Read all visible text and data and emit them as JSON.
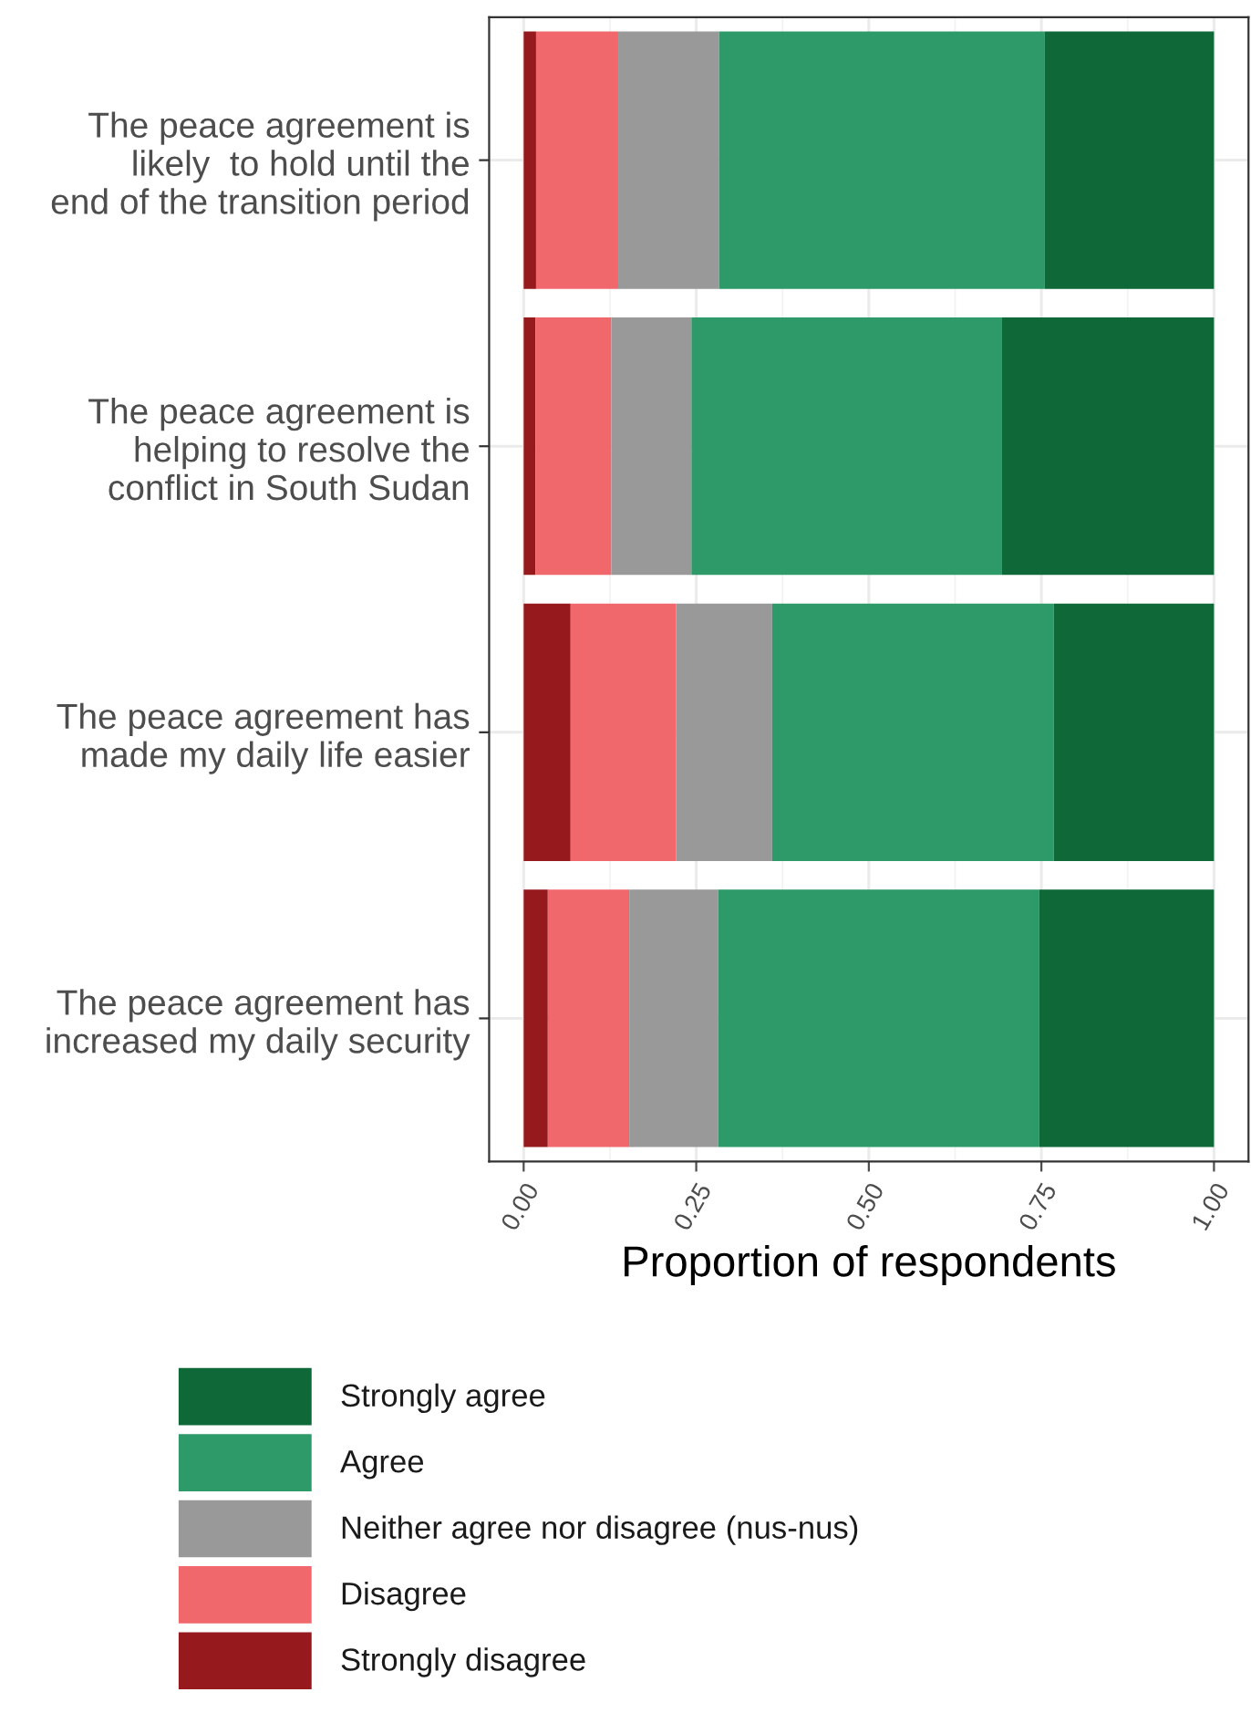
{
  "chart_data": {
    "type": "bar",
    "orientation": "horizontal",
    "stacked": true,
    "categories": [
      "The peace agreement is\nlikely  to hold until the\nend of the transition period",
      "The peace agreement is\nhelping to resolve the\nconflict in South Sudan",
      "The peace agreement has\nmade my daily life easier",
      "The peace agreement has\nincreased my daily security"
    ],
    "series": [
      {
        "name": "Strongly disagree",
        "color": "#961a1d",
        "values": [
          0.018,
          0.017,
          0.068,
          0.035
        ]
      },
      {
        "name": "Disagree",
        "color": "#f0686b",
        "values": [
          0.119,
          0.11,
          0.153,
          0.118
        ]
      },
      {
        "name": "Neither agree nor disagree (nus-nus)",
        "color": "#999999",
        "values": [
          0.146,
          0.116,
          0.139,
          0.129
        ]
      },
      {
        "name": "Agree",
        "color": "#2f9a69",
        "values": [
          0.472,
          0.45,
          0.408,
          0.465
        ]
      },
      {
        "name": "Strongly agree",
        "color": "#0e6837",
        "values": [
          0.245,
          0.307,
          0.232,
          0.253
        ]
      }
    ],
    "xlabel": "Proportion of respondents",
    "xlim": [
      -0.05,
      1.05
    ],
    "xticks": [
      {
        "value": 0,
        "label": "0.00"
      },
      {
        "value": 0.25,
        "label": "0.25"
      },
      {
        "value": 0.5,
        "label": "0.50"
      },
      {
        "value": 0.75,
        "label": "0.75"
      },
      {
        "value": 1,
        "label": "1.00"
      }
    ],
    "grid": true,
    "legend": "bottom"
  }
}
